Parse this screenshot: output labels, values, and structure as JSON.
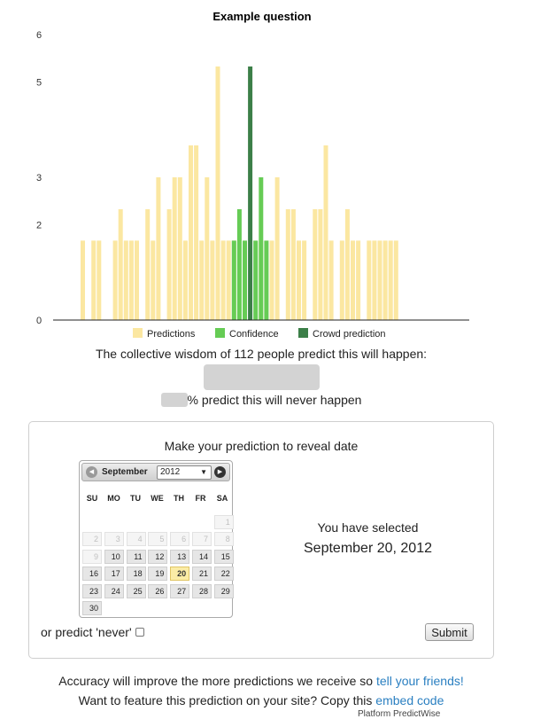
{
  "chart_data": {
    "type": "bar",
    "title": "Example question",
    "ylim": [
      0,
      6
    ],
    "yticks": [
      0,
      2,
      3,
      5,
      6
    ],
    "grid": false,
    "legend_position": "bottom",
    "series": [
      {
        "name": "Predictions",
        "color": "#fbe7a1",
        "values": [
          1.67,
          0,
          1.67,
          1.67,
          0,
          0,
          1.67,
          2.33,
          1.67,
          1.67,
          1.67,
          0,
          2.33,
          1.67,
          3,
          0,
          2.33,
          3,
          3,
          1.67,
          3.67,
          3.67,
          1.67,
          3,
          1.67,
          5.33,
          1.67,
          1.67,
          1.67,
          0,
          0,
          0,
          0,
          1.67,
          0,
          1.67,
          3,
          0,
          2.33,
          2.33,
          1.67,
          1.67,
          0,
          2.33,
          2.33,
          3.67,
          1.67,
          0,
          1.67,
          2.33,
          1.67,
          1.67,
          0,
          1.67,
          1.67,
          1.67,
          1.67,
          1.67,
          1.67
        ]
      },
      {
        "name": "Confidence",
        "color": "#66cc55",
        "values": [
          0,
          0,
          0,
          0,
          0,
          0,
          0,
          0,
          0,
          0,
          0,
          0,
          0,
          0,
          0,
          0,
          0,
          0,
          0,
          0,
          0,
          0,
          0,
          0,
          0,
          0,
          0,
          0,
          1.67,
          2.33,
          1.67,
          0,
          1.67,
          3,
          1.67,
          0,
          0,
          0,
          0,
          0,
          0,
          0,
          0,
          0,
          0,
          0,
          0,
          0,
          0,
          0,
          0,
          0,
          0,
          0,
          0,
          0,
          0,
          0,
          0
        ]
      },
      {
        "name": "Crowd prediction",
        "color": "#3c7f48",
        "values": [
          0,
          0,
          0,
          0,
          0,
          0,
          0,
          0,
          0,
          0,
          0,
          0,
          0,
          0,
          0,
          0,
          0,
          0,
          0,
          0,
          0,
          0,
          0,
          0,
          0,
          0,
          0,
          0,
          0,
          0,
          0,
          5.33,
          0,
          0,
          0,
          0,
          0,
          0,
          0,
          0,
          0,
          0,
          0,
          0,
          0,
          0,
          0,
          0,
          0,
          0,
          0,
          0,
          0,
          0,
          0,
          0,
          0,
          0,
          0
        ]
      }
    ]
  },
  "reveal": {
    "wisdom_text": "The collective wisdom of 112 people predict this will happen:",
    "never_suffix": "% predict this will never happen"
  },
  "panel": {
    "title": "Make your prediction to reveal date",
    "datepicker": {
      "month": "September",
      "year": "2012",
      "prev_icon": "◀",
      "next_icon": "▶",
      "dropdown_icon": "▼",
      "dows": [
        "SU",
        "MO",
        "TU",
        "WE",
        "TH",
        "FR",
        "SA"
      ],
      "weeks": [
        [
          null,
          null,
          null,
          null,
          null,
          null,
          {
            "d": "1",
            "disabled": true
          }
        ],
        [
          {
            "d": "2",
            "disabled": true
          },
          {
            "d": "3",
            "disabled": true
          },
          {
            "d": "4",
            "disabled": true
          },
          {
            "d": "5",
            "disabled": true
          },
          {
            "d": "6",
            "disabled": true
          },
          {
            "d": "7",
            "disabled": true
          },
          {
            "d": "8",
            "disabled": true
          }
        ],
        [
          {
            "d": "9",
            "disabled": true
          },
          {
            "d": "10"
          },
          {
            "d": "11"
          },
          {
            "d": "12"
          },
          {
            "d": "13"
          },
          {
            "d": "14"
          },
          {
            "d": "15"
          }
        ],
        [
          {
            "d": "16"
          },
          {
            "d": "17"
          },
          {
            "d": "18"
          },
          {
            "d": "19"
          },
          {
            "d": "20",
            "selected": true
          },
          {
            "d": "21"
          },
          {
            "d": "22"
          }
        ],
        [
          {
            "d": "23"
          },
          {
            "d": "24"
          },
          {
            "d": "25"
          },
          {
            "d": "26"
          },
          {
            "d": "27"
          },
          {
            "d": "28"
          },
          {
            "d": "29"
          }
        ],
        [
          {
            "d": "30"
          },
          null,
          null,
          null,
          null,
          null,
          null
        ]
      ]
    },
    "selected_label": "You have selected",
    "selected_date": "September 20, 2012",
    "never_label": "or predict 'never'",
    "submit_label": "Submit"
  },
  "footer": {
    "line1_text": "Accuracy will improve the more predictions we receive so ",
    "line1_link": "tell your friends!",
    "line2_text": "Want to feature this prediction on your site? Copy this ",
    "line2_link": "embed code",
    "powered": "Platform PredictWise"
  }
}
